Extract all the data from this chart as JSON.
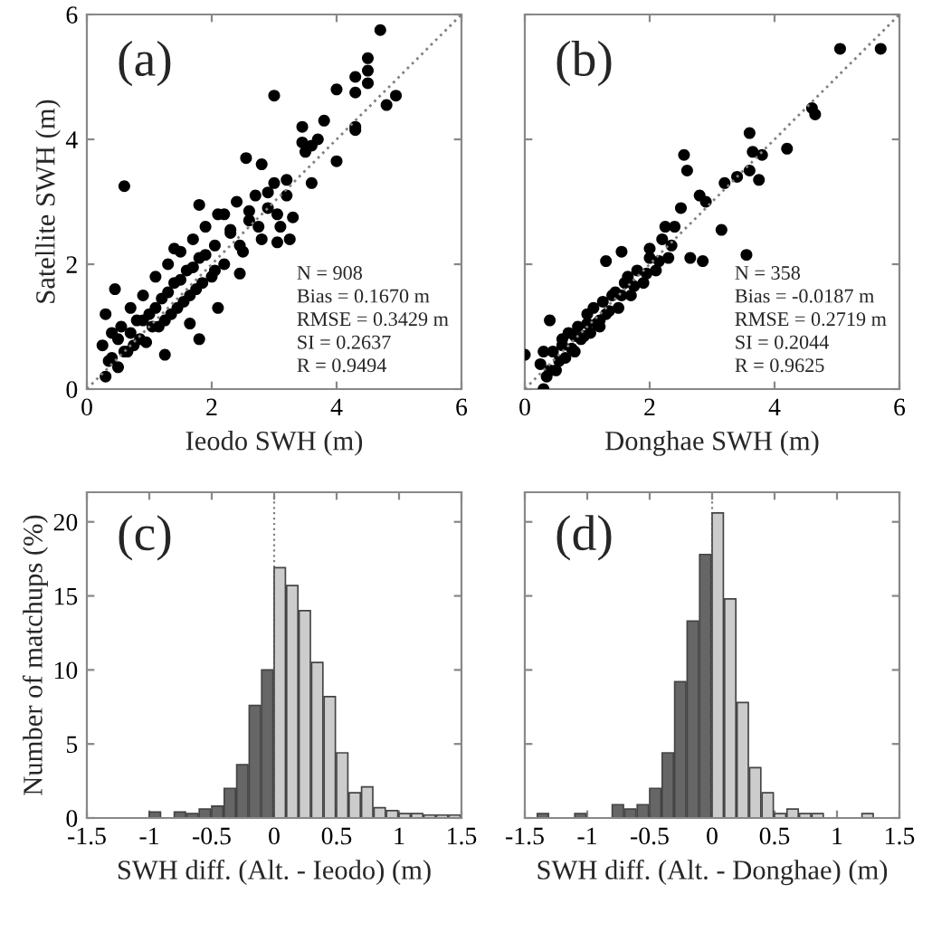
{
  "chart_data": [
    {
      "type": "scatter",
      "xlabel": "Ieodo SWH (m)",
      "ylabel": "Satellite SWH (m)",
      "xlim": [
        0,
        6
      ],
      "ylim": [
        0,
        6
      ],
      "xticks": [
        0,
        2,
        4,
        6
      ],
      "yticks": [
        0,
        2,
        4,
        6
      ],
      "marker": "circle",
      "grid": false,
      "annotations": [
        "(a)",
        "N = 908\nBias = 0.1670 m\nRMSE = 0.3429 m\nSI = 0.2637\nR = 0.9494"
      ],
      "series": [
        {
          "type": "scatter",
          "color": "#000000",
          "x": [
            0.6,
            3.0,
            4.7,
            4.5,
            4.3,
            4.5,
            4.5,
            4.0,
            4.3,
            4.8,
            4.95,
            4.0,
            4.3,
            4.3,
            3.8,
            3.45,
            3.7,
            3.6,
            3.5,
            3.45,
            3.6,
            3.25,
            3.05,
            2.45,
            1.8,
            1.25,
            1.65,
            2.1,
            0.45,
            2.55,
            2.8,
            1.8,
            1.4,
            2.2,
            0.25,
            0.3,
            0.35,
            0.4,
            0.3,
            0.5,
            0.55,
            0.6,
            0.7,
            0.75,
            0.8,
            0.9,
            0.95,
            1.0,
            1.1,
            1.15,
            1.2,
            1.3,
            1.35,
            1.4,
            1.5,
            1.55,
            1.6,
            1.7,
            1.75,
            1.8,
            1.9,
            2.0,
            2.05,
            2.1,
            2.2,
            2.3,
            2.4,
            2.5,
            2.6,
            2.7,
            2.8,
            2.9,
            3.0,
            3.1,
            3.2,
            3.3,
            0.5,
            0.7,
            0.9,
            1.1,
            1.3,
            1.5,
            1.7,
            1.9,
            2.3,
            2.6,
            2.9,
            3.2,
            0.4,
            0.65,
            0.85,
            1.05,
            1.25,
            1.45,
            1.65,
            1.85,
            2.05,
            2.45,
            2.75,
            3.05
          ],
          "values": [
            3.25,
            4.7,
            5.75,
            5.3,
            5.0,
            5.1,
            4.9,
            4.8,
            4.75,
            4.55,
            4.7,
            3.65,
            4.2,
            4.15,
            4.3,
            4.2,
            4.0,
            3.9,
            3.8,
            3.95,
            3.3,
            2.4,
            2.35,
            1.85,
            0.8,
            0.55,
            1.05,
            1.3,
            1.6,
            3.7,
            3.6,
            2.95,
            2.25,
            2.8,
            0.7,
            0.2,
            0.45,
            0.9,
            1.2,
            0.35,
            1.0,
            0.6,
            1.3,
            0.7,
            1.1,
            1.5,
            0.75,
            1.2,
            1.8,
            1.0,
            1.45,
            2.0,
            1.2,
            1.7,
            2.2,
            1.4,
            1.9,
            2.4,
            1.6,
            2.1,
            2.6,
            1.8,
            2.3,
            2.8,
            2.0,
            2.5,
            3.0,
            2.2,
            2.7,
            3.1,
            2.4,
            2.9,
            3.3,
            2.6,
            3.1,
            2.75,
            0.8,
            0.9,
            1.1,
            1.3,
            1.55,
            1.75,
            1.95,
            2.15,
            2.55,
            2.85,
            3.15,
            3.35,
            0.5,
            0.6,
            0.8,
            1.0,
            1.1,
            1.3,
            1.5,
            1.7,
            1.9,
            2.3,
            2.6,
            2.8
          ]
        },
        {
          "type": "line",
          "color": "#808080",
          "line_style": "dotted",
          "marker": "none",
          "x": [
            0,
            6
          ],
          "values": [
            0,
            6
          ]
        }
      ]
    },
    {
      "type": "scatter",
      "xlabel": "Donghae SWH (m)",
      "xlim": [
        0,
        6
      ],
      "ylim": [
        0,
        6
      ],
      "xticks": [
        0,
        2,
        4,
        6
      ],
      "yticks": [
        0,
        2,
        4,
        6
      ],
      "tick_labels": "x",
      "marker": "circle",
      "grid": false,
      "annotations": [
        "(b)",
        "N = 358\nBias = -0.0187 m\nRMSE = 0.2719 m\nSI = 0.2044\nR = 0.9625"
      ],
      "series": [
        {
          "type": "scatter",
          "color": "#000000",
          "x": [
            5.05,
            5.7,
            4.6,
            4.65,
            4.2,
            3.65,
            3.8,
            3.6,
            3.75,
            3.6,
            3.4,
            3.2,
            3.55,
            3.15,
            2.55,
            2.6,
            2.0,
            1.3,
            1.55,
            2.85,
            2.65,
            0.0,
            0.4,
            0.3,
            2.8,
            2.9,
            2.5,
            2.25,
            0.25,
            0.35,
            0.45,
            0.5,
            0.6,
            0.65,
            0.7,
            0.8,
            0.85,
            0.9,
            1.0,
            1.05,
            1.1,
            1.2,
            1.25,
            1.3,
            1.4,
            1.5,
            1.6,
            1.7,
            1.8,
            1.9,
            2.0,
            2.1,
            2.2,
            2.3,
            2.4,
            0.3,
            0.55,
            0.75,
            0.95,
            1.15,
            1.35,
            1.55,
            1.75,
            1.95,
            2.15,
            2.35,
            0.4,
            0.6,
            0.8,
            1.0,
            1.2,
            1.45,
            1.65
          ],
          "values": [
            5.45,
            5.45,
            4.5,
            4.4,
            3.85,
            3.8,
            3.75,
            4.1,
            3.35,
            3.5,
            3.4,
            3.3,
            2.15,
            2.55,
            3.75,
            3.5,
            2.25,
            2.05,
            2.2,
            2.05,
            2.1,
            0.55,
            1.1,
            0.0,
            3.1,
            3.0,
            2.9,
            2.6,
            0.4,
            0.2,
            0.6,
            0.3,
            0.8,
            0.5,
            0.9,
            0.6,
            1.0,
            0.8,
            1.2,
            0.9,
            1.3,
            1.0,
            1.4,
            1.2,
            1.5,
            1.3,
            1.7,
            1.5,
            1.9,
            1.7,
            2.1,
            1.9,
            2.4,
            2.1,
            2.6,
            0.6,
            0.45,
            0.65,
            0.85,
            1.05,
            1.25,
            1.5,
            1.65,
            1.85,
            2.05,
            2.3,
            0.3,
            0.7,
            0.85,
            1.05,
            1.1,
            1.55,
            1.8
          ]
        },
        {
          "type": "line",
          "color": "#808080",
          "line_style": "dotted",
          "marker": "none",
          "x": [
            0,
            6
          ],
          "values": [
            0,
            6
          ]
        }
      ]
    },
    {
      "type": "histogram",
      "xlabel": "SWH diff. (Alt. - Ieodo) (m)",
      "ylabel": "Number of matchups (%)",
      "xlim": [
        -1.5,
        1.5
      ],
      "ylim": [
        0,
        22
      ],
      "xticks": [
        -1.5,
        -1,
        -0.5,
        0,
        0.5,
        1,
        1.5
      ],
      "yticks": [
        0,
        5,
        10,
        15,
        20
      ],
      "grid": false,
      "annotations": [
        "(c)"
      ],
      "ref_lines": [
        {
          "axis": "x",
          "value": 0,
          "color": "#808080",
          "line_style": "dotted"
        }
      ],
      "bins": [
        -1.5,
        -1.4,
        -1.3,
        -1.2,
        -1.1,
        -1.0,
        -0.9,
        -0.8,
        -0.7,
        -0.6,
        -0.5,
        -0.4,
        -0.3,
        -0.2,
        -0.1,
        0,
        0.1,
        0.2,
        0.3,
        0.4,
        0.5,
        0.6,
        0.7,
        0.8,
        0.9,
        1.0,
        1.1,
        1.2,
        1.3,
        1.4,
        1.5
      ],
      "values": [
        0,
        0,
        0,
        0,
        0,
        0.4,
        0,
        0.4,
        0.3,
        0.6,
        0.8,
        2.0,
        3.6,
        7.6,
        10.0,
        16.9,
        15.7,
        14.0,
        10.5,
        8.2,
        4.4,
        1.7,
        2.1,
        0.7,
        0.5,
        0.3,
        0.3,
        0.2,
        0.2,
        0.2
      ],
      "colors": [
        "#666666",
        "#666666",
        "#666666",
        "#666666",
        "#666666",
        "#666666",
        "#666666",
        "#666666",
        "#666666",
        "#666666",
        "#666666",
        "#666666",
        "#666666",
        "#666666",
        "#666666",
        "#cccccc",
        "#cccccc",
        "#cccccc",
        "#cccccc",
        "#cccccc",
        "#cccccc",
        "#cccccc",
        "#cccccc",
        "#cccccc",
        "#cccccc",
        "#cccccc",
        "#cccccc",
        "#cccccc",
        "#cccccc",
        "#cccccc"
      ]
    },
    {
      "type": "histogram",
      "xlabel": "SWH diff. (Alt. - Donghae) (m)",
      "xlim": [
        -1.5,
        1.5
      ],
      "ylim": [
        0,
        22
      ],
      "xticks": [
        -1.5,
        -1,
        -0.5,
        0,
        0.5,
        1,
        1.5
      ],
      "yticks": [
        0,
        5,
        10,
        15,
        20
      ],
      "tick_labels": "x",
      "grid": false,
      "annotations": [
        "(d)"
      ],
      "ref_lines": [
        {
          "axis": "x",
          "value": 0,
          "color": "#808080",
          "line_style": "dotted"
        }
      ],
      "bins": [
        -1.5,
        -1.4,
        -1.3,
        -1.2,
        -1.1,
        -1.0,
        -0.9,
        -0.8,
        -0.7,
        -0.6,
        -0.5,
        -0.4,
        -0.3,
        -0.2,
        -0.1,
        0,
        0.1,
        0.2,
        0.3,
        0.4,
        0.5,
        0.6,
        0.7,
        0.8,
        0.9,
        1.0,
        1.1,
        1.2,
        1.3,
        1.4,
        1.5
      ],
      "values": [
        0,
        0.3,
        0,
        0,
        0.3,
        0,
        0,
        0.9,
        0.6,
        0.9,
        2.0,
        4.4,
        9.2,
        13.3,
        17.8,
        20.6,
        14.8,
        7.8,
        3.4,
        1.7,
        0.3,
        0.6,
        0.3,
        0.3,
        0,
        0,
        0,
        0.3,
        0,
        0
      ],
      "colors": [
        "#666666",
        "#666666",
        "#666666",
        "#666666",
        "#666666",
        "#666666",
        "#666666",
        "#666666",
        "#666666",
        "#666666",
        "#666666",
        "#666666",
        "#666666",
        "#666666",
        "#666666",
        "#cccccc",
        "#cccccc",
        "#cccccc",
        "#cccccc",
        "#cccccc",
        "#cccccc",
        "#cccccc",
        "#cccccc",
        "#cccccc",
        "#cccccc",
        "#cccccc",
        "#cccccc",
        "#cccccc",
        "#cccccc",
        "#cccccc"
      ]
    }
  ]
}
